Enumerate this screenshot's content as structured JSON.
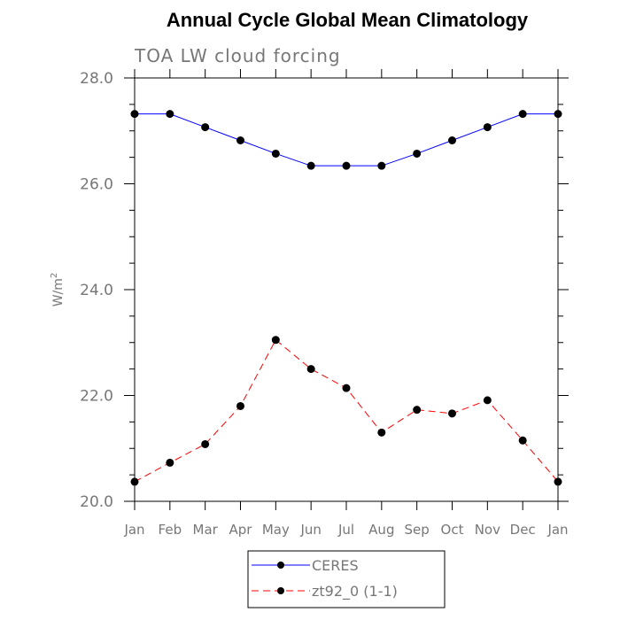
{
  "chart_data": {
    "type": "line",
    "title": "Annual Cycle Global Mean Climatology",
    "subtitle": "TOA LW cloud forcing",
    "xlabel": "",
    "ylabel": "W/m",
    "ylabel_superscript": "2",
    "ylim": [
      20.0,
      28.0
    ],
    "yticks": [
      "20.0",
      "22.0",
      "24.0",
      "26.0",
      "28.0"
    ],
    "ytick_values": [
      20,
      22,
      24,
      26,
      28
    ],
    "categories": [
      "Jan",
      "Feb",
      "Mar",
      "Apr",
      "May",
      "Jun",
      "Jul",
      "Aug",
      "Sep",
      "Oct",
      "Nov",
      "Dec",
      "Jan"
    ],
    "series": [
      {
        "name": "CERES",
        "color": "#0000ff",
        "dash": "solid",
        "values": [
          27.32,
          27.32,
          27.07,
          26.82,
          26.57,
          26.34,
          26.34,
          26.34,
          26.57,
          26.82,
          27.07,
          27.32,
          27.32
        ]
      },
      {
        "name": "zt92_0 (1-1)",
        "color": "#ff0000",
        "dash": "dashed",
        "values": [
          20.37,
          20.73,
          21.08,
          21.8,
          23.05,
          22.5,
          22.14,
          21.3,
          21.73,
          21.66,
          21.91,
          21.15,
          20.37
        ]
      }
    ],
    "legend_position": "bottom-center"
  }
}
